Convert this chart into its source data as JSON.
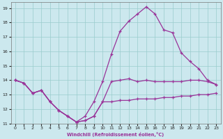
{
  "bg_color": "#cce8ee",
  "line_color": "#993399",
  "grid_color": "#99cccc",
  "xlabel": "Windchill (Refroidissement éolien,°C)",
  "xlim": [
    -0.5,
    23.5
  ],
  "ylim": [
    11,
    19.4
  ],
  "yticks": [
    11,
    12,
    13,
    14,
    15,
    16,
    17,
    18,
    19
  ],
  "xticks": [
    0,
    1,
    2,
    3,
    4,
    5,
    6,
    7,
    8,
    9,
    10,
    11,
    12,
    13,
    14,
    15,
    16,
    17,
    18,
    19,
    20,
    21,
    22,
    23
  ],
  "line1_x": [
    0,
    1,
    2,
    3,
    4,
    5,
    6,
    7,
    8,
    9,
    10,
    11,
    12,
    13,
    14,
    15,
    16,
    17,
    18,
    19,
    20,
    21,
    22,
    23
  ],
  "line1_y": [
    14.0,
    13.8,
    13.1,
    13.3,
    12.5,
    11.9,
    11.5,
    11.1,
    11.2,
    11.5,
    12.5,
    12.5,
    12.6,
    12.6,
    12.7,
    12.7,
    12.7,
    12.8,
    12.8,
    12.9,
    12.9,
    13.0,
    13.0,
    13.1
  ],
  "line2_x": [
    0,
    1,
    2,
    3,
    4,
    5,
    6,
    7,
    8,
    9,
    10,
    11,
    12,
    13,
    14,
    15,
    16,
    17,
    18,
    19,
    20,
    21,
    22,
    23
  ],
  "line2_y": [
    14.0,
    13.8,
    13.1,
    13.3,
    12.5,
    11.9,
    11.5,
    11.1,
    11.2,
    11.5,
    12.5,
    13.9,
    14.0,
    14.1,
    13.9,
    14.0,
    13.9,
    13.9,
    13.9,
    13.9,
    14.0,
    14.0,
    13.9,
    13.7
  ],
  "line3_x": [
    0,
    1,
    2,
    3,
    4,
    5,
    6,
    7,
    8,
    9,
    10,
    11,
    12,
    13,
    14,
    15,
    16,
    17,
    18,
    19,
    20,
    21,
    22,
    23
  ],
  "line3_y": [
    14.0,
    13.8,
    13.1,
    13.3,
    12.5,
    11.9,
    11.5,
    11.1,
    11.5,
    12.5,
    13.9,
    15.8,
    17.4,
    18.1,
    18.6,
    19.1,
    18.6,
    17.5,
    17.3,
    15.9,
    15.3,
    14.8,
    14.0,
    13.7
  ]
}
